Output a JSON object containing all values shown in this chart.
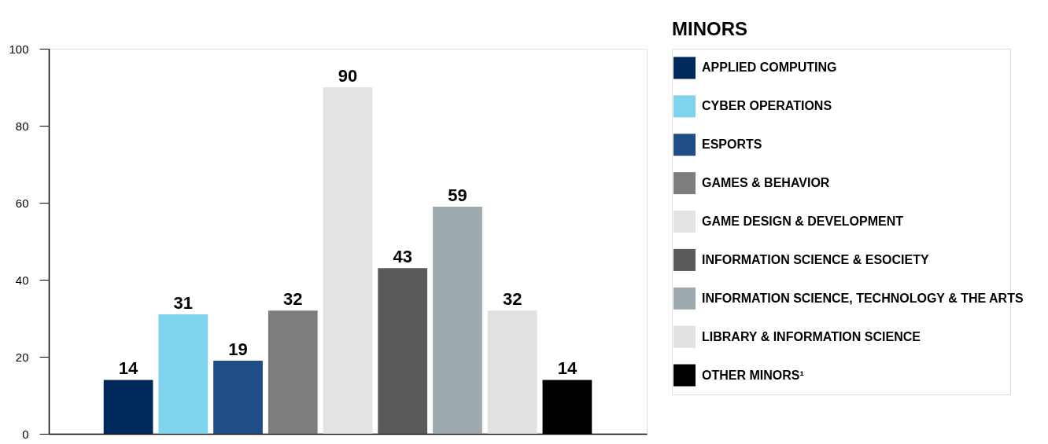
{
  "chart_data": {
    "type": "bar",
    "legend_title": "MINORS",
    "categories": [
      null,
      null,
      null,
      null,
      null,
      null,
      null,
      null,
      null
    ],
    "series": [
      {
        "name": "APPLIED COMPUTING",
        "color": "#002858",
        "values": [
          14,
          null,
          null,
          null,
          null,
          null,
          null,
          null,
          null
        ]
      },
      {
        "name": "CYBER OPERATIONS",
        "color": "#7fd3ec",
        "values": [
          null,
          31,
          null,
          null,
          null,
          null,
          null,
          null,
          null
        ]
      },
      {
        "name": "ESPORTS",
        "color": "#1f4e87",
        "values": [
          null,
          null,
          19,
          null,
          null,
          null,
          null,
          null,
          null
        ]
      },
      {
        "name": "GAMES & BEHAVIOR",
        "color": "#7d7d7d",
        "values": [
          null,
          null,
          null,
          32,
          null,
          null,
          null,
          null,
          null
        ]
      },
      {
        "name": "GAME DESIGN & DEVELOPMENT",
        "color": "#e4e4e4",
        "values": [
          null,
          null,
          null,
          null,
          90,
          null,
          null,
          null,
          null
        ]
      },
      {
        "name": "INFORMATION SCIENCE & ESOCIETY",
        "color": "#5a5a5a",
        "values": [
          null,
          null,
          null,
          null,
          null,
          43,
          null,
          null,
          null
        ]
      },
      {
        "name": "INFORMATION SCIENCE, TECHNOLOGY & THE ARTS",
        "color": "#9eaab0",
        "values": [
          null,
          null,
          null,
          null,
          null,
          null,
          59,
          null,
          null
        ]
      },
      {
        "name": "LIBRARY & INFORMATION SCIENCE",
        "color": "#e0e1e3",
        "values": [
          null,
          null,
          null,
          null,
          null,
          null,
          null,
          32,
          null
        ]
      },
      {
        "name": "OTHER MINORS¹",
        "color": "#000000",
        "values": [
          null,
          null,
          null,
          null,
          null,
          null,
          null,
          null,
          14
        ]
      }
    ],
    "ylim": [
      0,
      100
    ],
    "yticks": [
      0,
      20,
      40,
      60,
      80,
      100
    ],
    "stacked": true,
    "grid": false,
    "legend": "right",
    "data_labels": true,
    "tick_labels": "y"
  }
}
